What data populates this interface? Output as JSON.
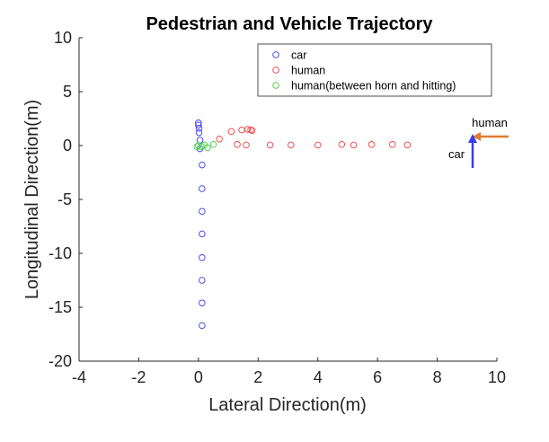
{
  "chart_data": {
    "type": "scatter",
    "title": "Pedestrian and Vehicle Trajectory",
    "xlabel": "Lateral Direction(m)",
    "ylabel": "Longitudinal Direction(m)",
    "xlim": [
      -4,
      10
    ],
    "ylim": [
      -20,
      10
    ],
    "xticks": [
      "-4",
      "-2",
      "0",
      "2",
      "4",
      "6",
      "8",
      "10"
    ],
    "yticks": [
      "10",
      "5",
      "0",
      "-5",
      "-10",
      "-15",
      "-20"
    ],
    "grid": false,
    "legend_position": "top-right",
    "series": [
      {
        "name": "car",
        "color": "#3b3bf0",
        "points": [
          [
            0.12,
            -16.7
          ],
          [
            0.12,
            -14.6
          ],
          [
            0.12,
            -12.5
          ],
          [
            0.12,
            -10.4
          ],
          [
            0.12,
            -8.2
          ],
          [
            0.12,
            -6.1
          ],
          [
            0.12,
            -4.0
          ],
          [
            0.12,
            -1.8
          ],
          [
            0.05,
            -0.3
          ],
          [
            0.05,
            0.5
          ],
          [
            0.02,
            1.2
          ],
          [
            0.02,
            1.6
          ],
          [
            0.0,
            1.9
          ],
          [
            0.0,
            2.1
          ]
        ]
      },
      {
        "name": "human",
        "color": "#f04040",
        "points": [
          [
            7.0,
            0.05
          ],
          [
            6.5,
            0.1
          ],
          [
            5.8,
            0.1
          ],
          [
            5.2,
            0.05
          ],
          [
            4.8,
            0.1
          ],
          [
            4.0,
            0.05
          ],
          [
            3.1,
            0.05
          ],
          [
            2.4,
            0.05
          ],
          [
            1.6,
            0.05
          ],
          [
            1.3,
            0.1
          ],
          [
            0.7,
            0.6
          ],
          [
            1.1,
            1.3
          ],
          [
            1.45,
            1.45
          ],
          [
            1.65,
            1.5
          ],
          [
            1.75,
            1.45
          ],
          [
            1.8,
            1.4
          ]
        ]
      },
      {
        "name": "human(between horn and hitting)",
        "color": "#40d040",
        "points": [
          [
            0.5,
            0.1
          ],
          [
            0.3,
            -0.2
          ],
          [
            0.2,
            0.05
          ],
          [
            0.1,
            -0.1
          ],
          [
            0.0,
            0.0
          ],
          [
            -0.05,
            -0.1
          ]
        ]
      }
    ],
    "annotations": {
      "human_label": "human",
      "car_label": "car",
      "human_arrow_color": "#e07a2e",
      "car_arrow_color": "#3b3bf0"
    }
  }
}
